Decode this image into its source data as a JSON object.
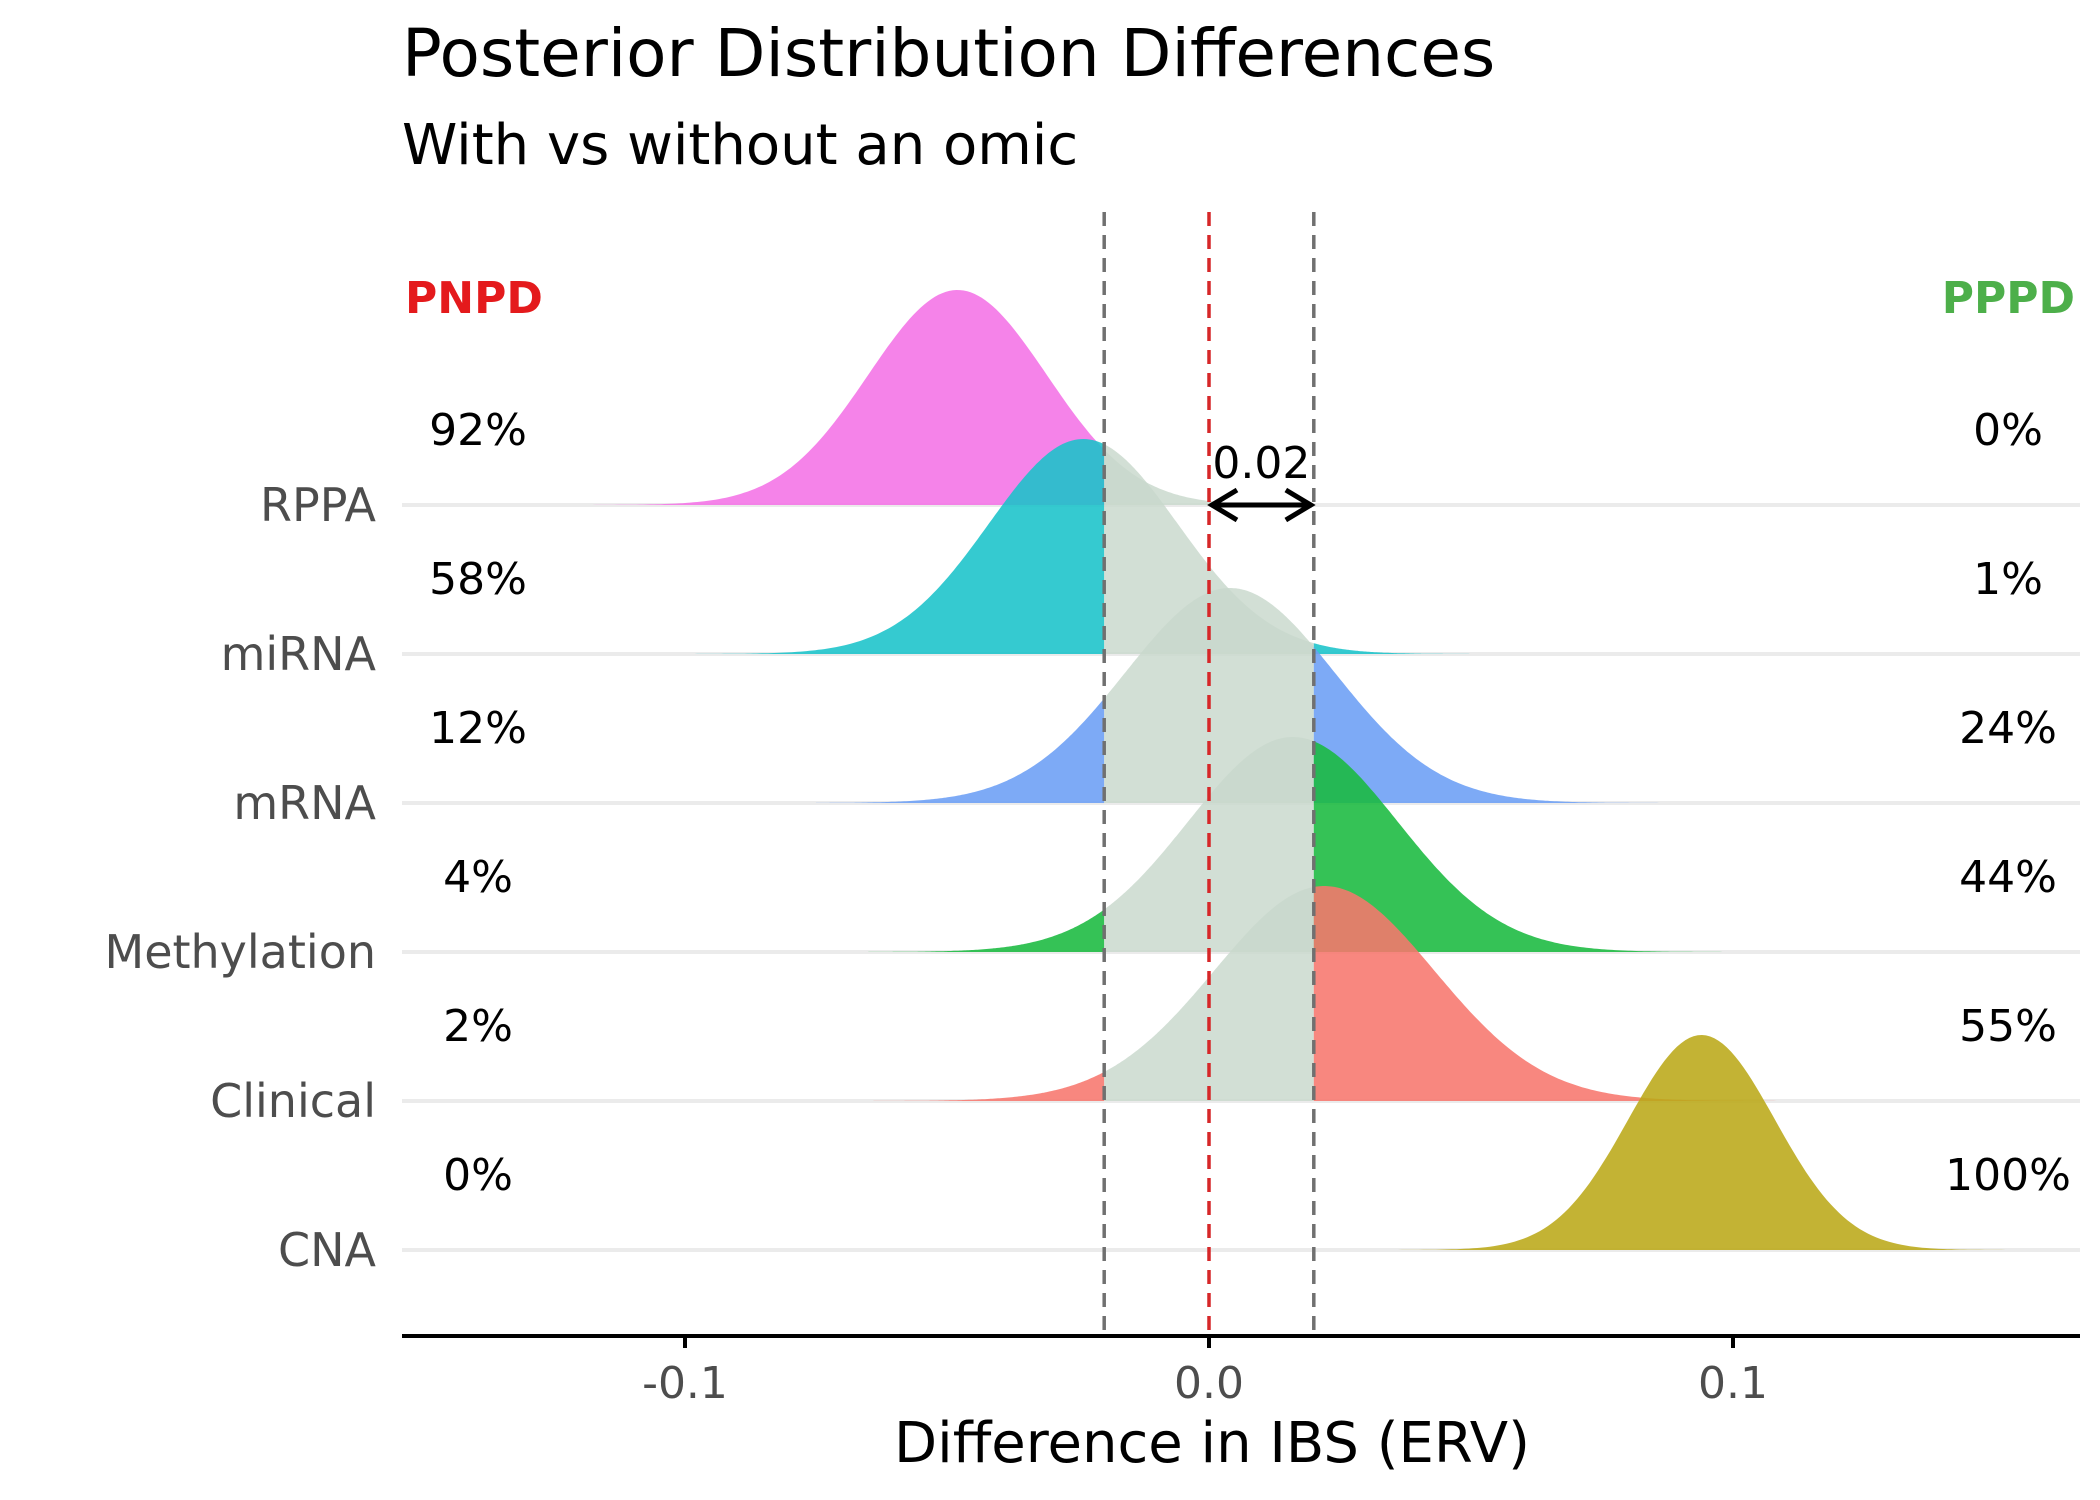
{
  "chart_data": {
    "type": "ridgeline",
    "title": "Posterior Distribution Differences",
    "subtitle": "With vs without an omic",
    "xlabel": "Difference in IBS (ERV)",
    "xlim": [
      -0.155,
      0.165
    ],
    "xticks": [
      -0.1,
      0.0,
      0.1
    ],
    "xtick_labels": [
      "-0.1",
      "0.0",
      "0.1"
    ],
    "rope": [
      -0.02,
      0.02
    ],
    "zero_line": 0.0,
    "annotation": {
      "text": "0.02",
      "from": 0.0,
      "to": 0.02
    },
    "left_header": "PNPD",
    "right_header": "PPPD",
    "left_header_color": "#e41a1c",
    "right_header_color": "#4daf4a",
    "rope_fill_color": "#c8d8cc",
    "grid": "horizontal baselines only",
    "series": [
      {
        "name": "RPPA",
        "color": "#f472e6",
        "mean": -0.048,
        "sd": 0.017,
        "xmin": -0.13,
        "xmax": 0.02,
        "pnpd": "92%",
        "pppd": "0%"
      },
      {
        "name": "miRNA",
        "color": "#19c3c9",
        "mean": -0.024,
        "sd": 0.018,
        "xmin": -0.11,
        "xmax": 0.055,
        "pnpd": "58%",
        "pppd": "1%"
      },
      {
        "name": "mRNA",
        "color": "#6b9ef5",
        "mean": 0.004,
        "sd": 0.02,
        "xmin": -0.075,
        "xmax": 0.088,
        "pnpd": "12%",
        "pppd": "24%"
      },
      {
        "name": "Methylation",
        "color": "#19b93f",
        "mean": 0.016,
        "sd": 0.02,
        "xmin": -0.065,
        "xmax": 0.1,
        "pnpd": "4%",
        "pppd": "44%"
      },
      {
        "name": "Clinical",
        "color": "#f7766d",
        "mean": 0.022,
        "sd": 0.021,
        "xmin": -0.065,
        "xmax": 0.11,
        "pnpd": "2%",
        "pppd": "55%"
      },
      {
        "name": "CNA",
        "color": "#bba918",
        "mean": 0.094,
        "sd": 0.014,
        "xmin": 0.025,
        "xmax": 0.152,
        "pnpd": "0%",
        "pppd": "100%"
      }
    ]
  }
}
